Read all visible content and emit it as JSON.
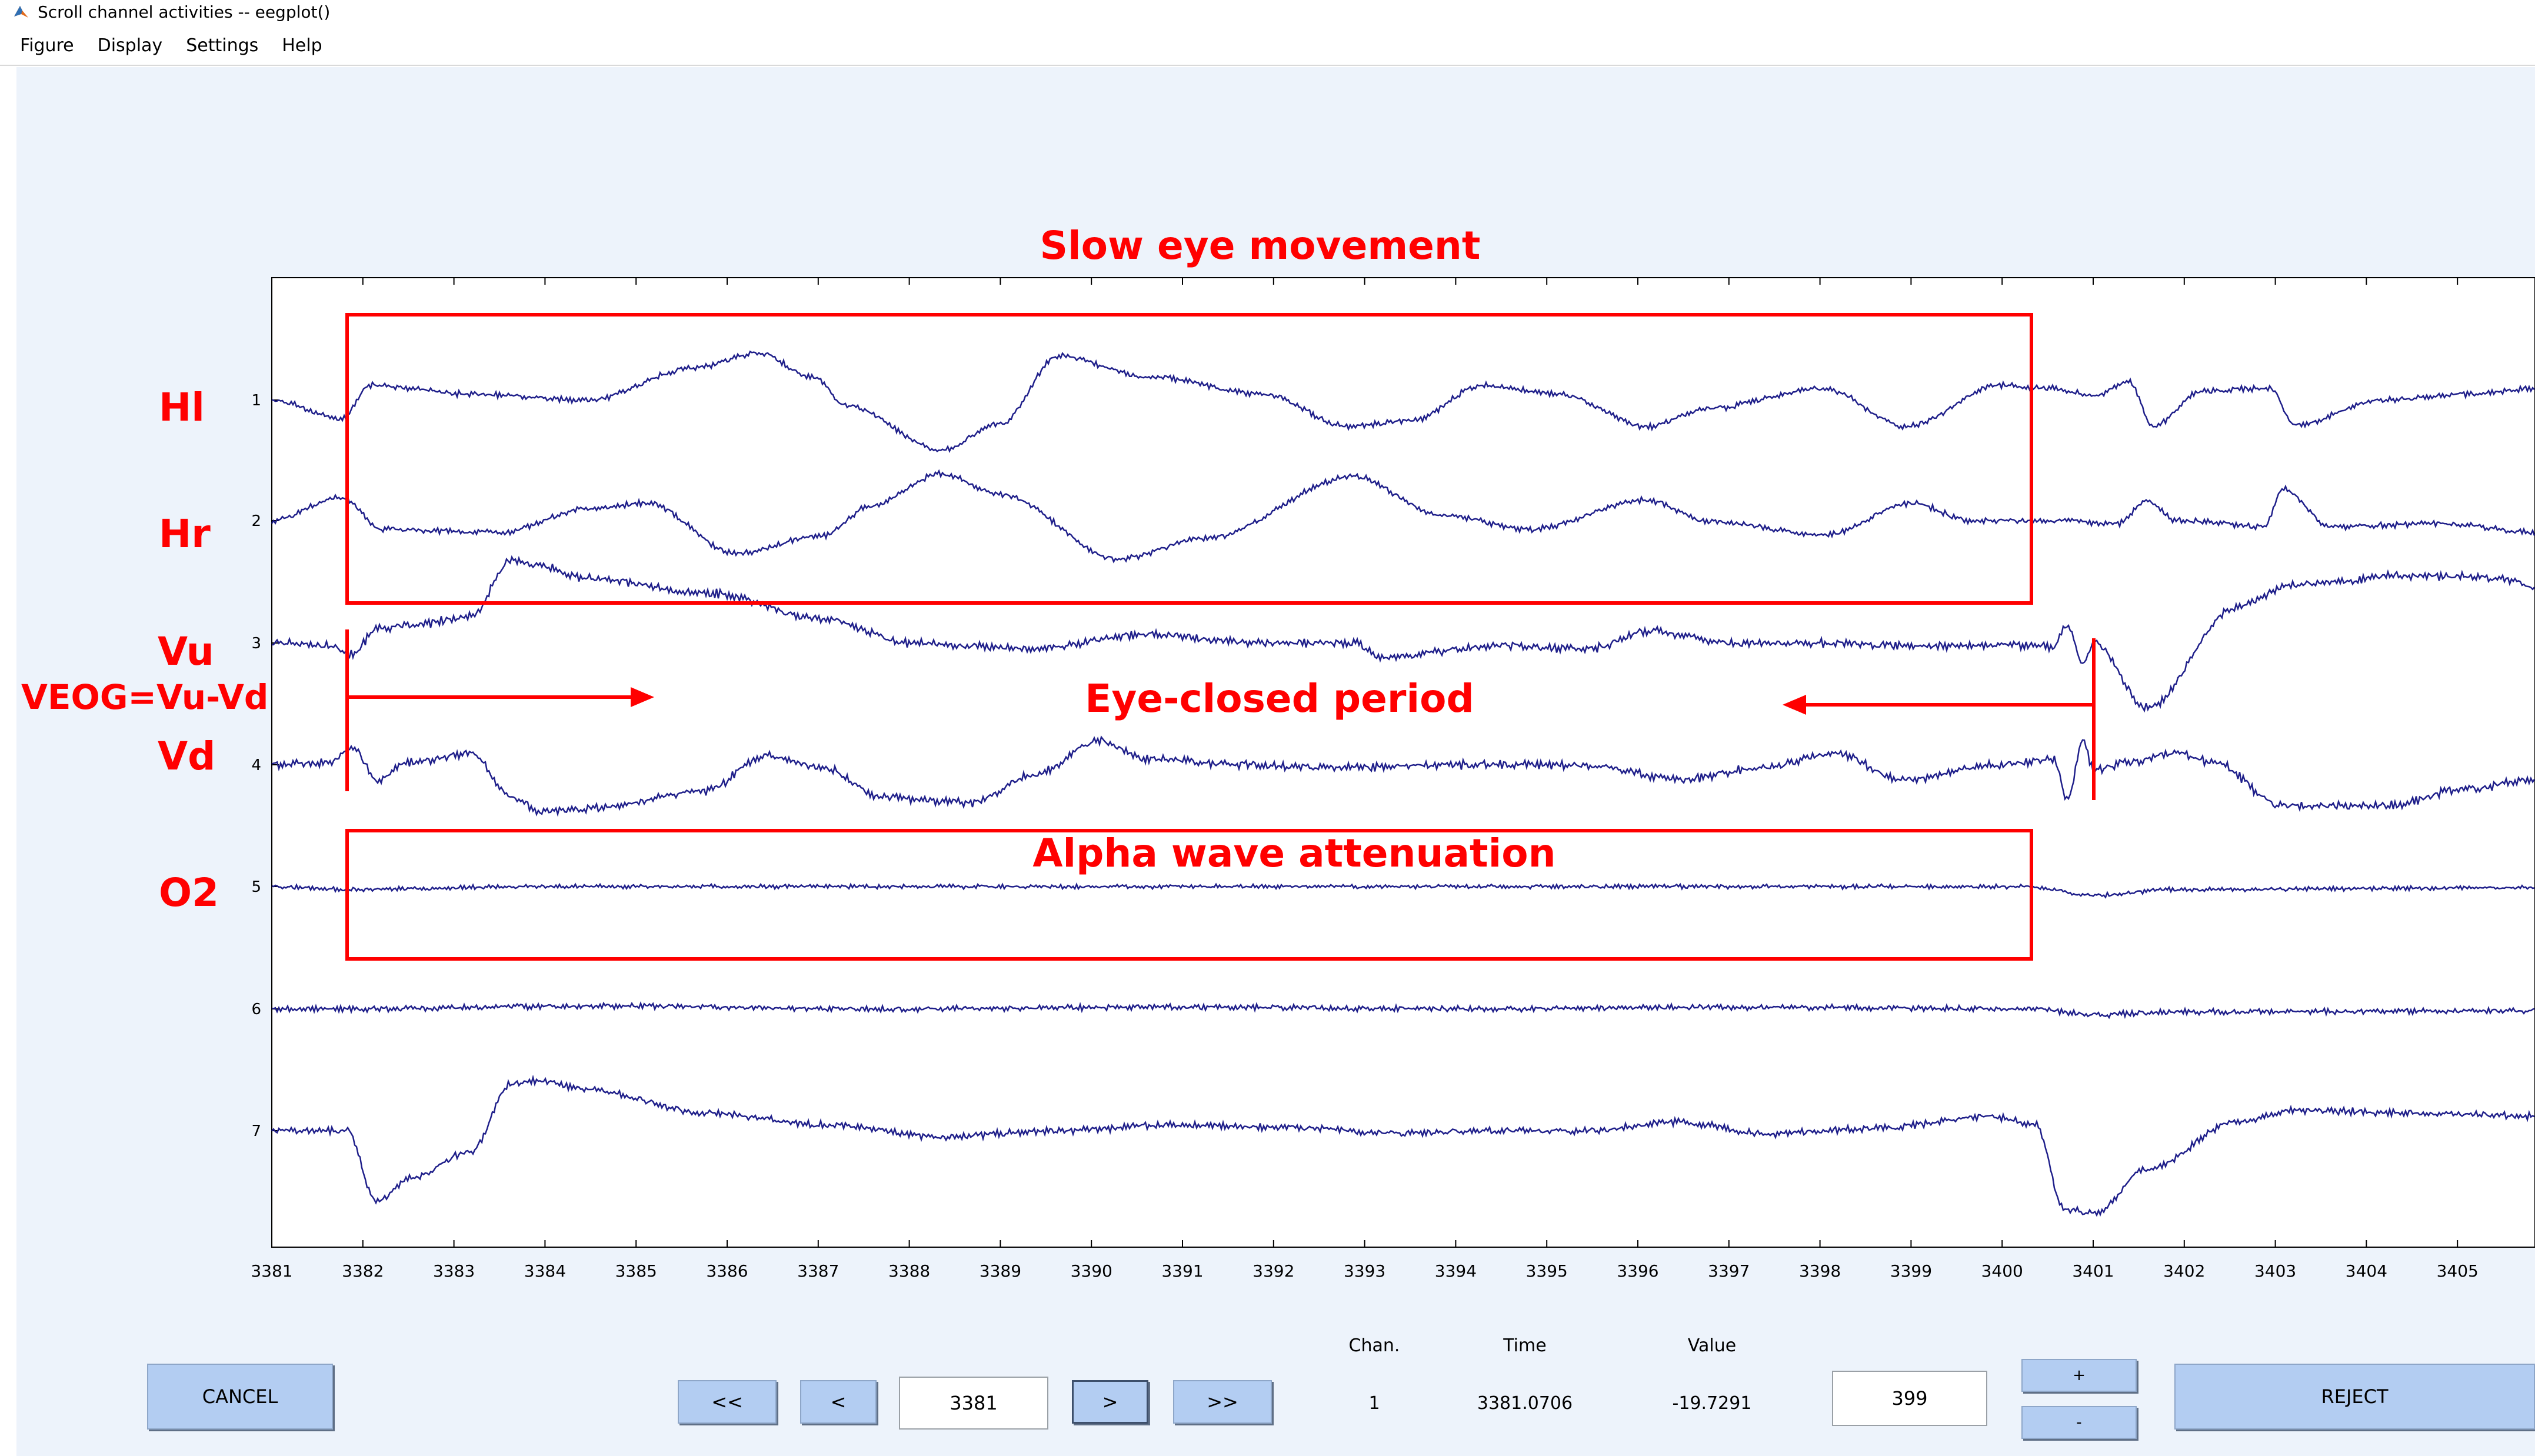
{
  "window": {
    "title": "Scroll channel activities -- eegplot()"
  },
  "menu": [
    "Figure",
    "Display",
    "Settings",
    "Help"
  ],
  "plot": {
    "channel_ticks": [
      "1",
      "2",
      "3",
      "4",
      "5",
      "6",
      "7"
    ],
    "time_ticks": [
      "3381",
      "3382",
      "3383",
      "3384",
      "3385",
      "3386",
      "3387",
      "3388",
      "3389",
      "3390",
      "3391",
      "3392",
      "3393",
      "3394",
      "3395",
      "3396",
      "3397",
      "3398",
      "3399",
      "3400",
      "3401",
      "3402",
      "3403",
      "3404",
      "3405"
    ],
    "trace_color": "#1f1f8a",
    "annotation_color": "#ff0000"
  },
  "annotations": {
    "slow_eye_movement": "Slow eye movement",
    "eye_closed_period": "Eye-closed period",
    "alpha_wave": "Alpha wave attenuation",
    "labels": {
      "hl": "Hl",
      "hr": "Hr",
      "vu": "Vu",
      "veog": "VEOG=Vu-Vd",
      "vd": "Vd",
      "o2": "O2"
    }
  },
  "controls": {
    "cancel": "CANCEL",
    "back_far": "<<",
    "back": "<",
    "time_value": "3381",
    "forward": ">",
    "forward_far": ">>",
    "scale_value": "399",
    "plus": "+",
    "minus": "-",
    "reject": "REJECT"
  },
  "readout": {
    "chan_label": "Chan.",
    "time_label": "Time",
    "value_label": "Value",
    "chan": "1",
    "time": "3381.0706",
    "value": "-19.7291"
  }
}
